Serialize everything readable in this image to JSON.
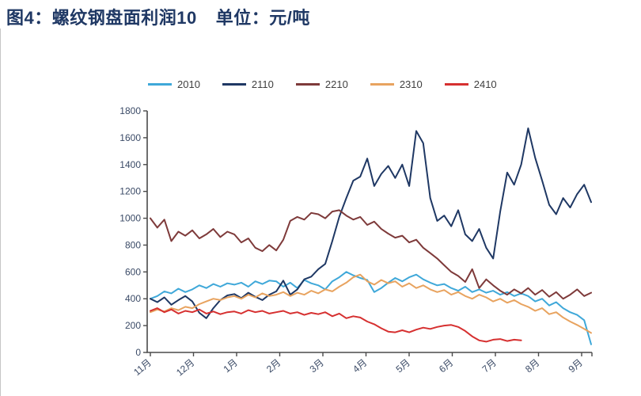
{
  "header": {
    "title": "图4：螺纹钢盘面利润10",
    "unit": "单位：元/吨"
  },
  "colors": {
    "title": "#1F3864",
    "axis_line": "#4a4a4a",
    "axis_text": "#3A4A66",
    "legend_text": "#404040"
  },
  "chart_data": {
    "type": "line",
    "title": "螺纹钢盘面利润10",
    "unit": "元/吨",
    "legend_position": "top",
    "grid": false,
    "ylim": [
      0,
      1800
    ],
    "yticks": [
      0,
      200,
      400,
      600,
      800,
      1000,
      1200,
      1400,
      1600,
      1800
    ],
    "x_categories": [
      "11月",
      "12月",
      "1月",
      "2月",
      "3月",
      "4月",
      "5月",
      "6月",
      "7月",
      "8月",
      "9月"
    ],
    "series": [
      {
        "name": "2010",
        "color": "#3FA8D9",
        "values": [
          400,
          420,
          455,
          440,
          475,
          450,
          470,
          500,
          480,
          510,
          490,
          515,
          505,
          520,
          490,
          530,
          510,
          535,
          530,
          490,
          520,
          480,
          540,
          515,
          500,
          470,
          530,
          560,
          600,
          575,
          555,
          540,
          450,
          480,
          520,
          555,
          530,
          560,
          580,
          545,
          520,
          500,
          510,
          480,
          460,
          490,
          450,
          470,
          445,
          460,
          430,
          450,
          420,
          440,
          420,
          380,
          400,
          350,
          375,
          330,
          300,
          280,
          240,
          60
        ]
      },
      {
        "name": "2110",
        "color": "#1F3864",
        "values": [
          400,
          375,
          410,
          355,
          390,
          420,
          380,
          295,
          255,
          330,
          390,
          425,
          435,
          405,
          445,
          415,
          390,
          430,
          455,
          535,
          430,
          470,
          545,
          565,
          620,
          660,
          830,
          1010,
          1150,
          1280,
          1310,
          1445,
          1240,
          1330,
          1390,
          1300,
          1400,
          1240,
          1650,
          1560,
          1150,
          980,
          1020,
          940,
          1060,
          880,
          830,
          920,
          780,
          700,
          1050,
          1340,
          1250,
          1400,
          1670,
          1450,
          1280,
          1100,
          1030,
          1150,
          1080,
          1180,
          1250,
          1120
        ]
      },
      {
        "name": "2210",
        "color": "#7E3A3A",
        "values": [
          1000,
          930,
          990,
          830,
          900,
          870,
          910,
          850,
          880,
          920,
          860,
          900,
          880,
          820,
          850,
          780,
          755,
          800,
          760,
          840,
          980,
          1010,
          990,
          1040,
          1030,
          1000,
          1050,
          1060,
          1020,
          990,
          1010,
          950,
          975,
          920,
          885,
          855,
          870,
          820,
          840,
          780,
          740,
          700,
          650,
          600,
          570,
          525,
          620,
          480,
          545,
          500,
          460,
          430,
          470,
          440,
          480,
          430,
          465,
          415,
          450,
          400,
          430,
          470,
          420,
          445
        ]
      },
      {
        "name": "2310",
        "color": "#E8A35F",
        "values": [
          300,
          320,
          305,
          330,
          315,
          340,
          330,
          360,
          380,
          400,
          390,
          410,
          420,
          400,
          430,
          410,
          440,
          420,
          430,
          450,
          420,
          445,
          430,
          460,
          440,
          470,
          455,
          490,
          520,
          560,
          580,
          530,
          505,
          540,
          515,
          530,
          490,
          515,
          480,
          500,
          470,
          450,
          465,
          430,
          450,
          420,
          400,
          430,
          410,
          380,
          400,
          370,
          390,
          360,
          340,
          310,
          330,
          285,
          300,
          260,
          230,
          205,
          175,
          145
        ]
      },
      {
        "name": "2410",
        "color": "#D63030",
        "values": [
          310,
          330,
          300,
          320,
          290,
          310,
          300,
          320,
          290,
          305,
          285,
          300,
          305,
          290,
          315,
          300,
          310,
          290,
          300,
          310,
          290,
          300,
          280,
          295,
          285,
          300,
          270,
          290,
          255,
          270,
          260,
          230,
          210,
          180,
          155,
          150,
          165,
          150,
          170,
          185,
          175,
          190,
          200,
          205,
          190,
          160,
          120,
          90,
          80,
          95,
          100,
          85,
          95,
          90
        ]
      }
    ]
  }
}
